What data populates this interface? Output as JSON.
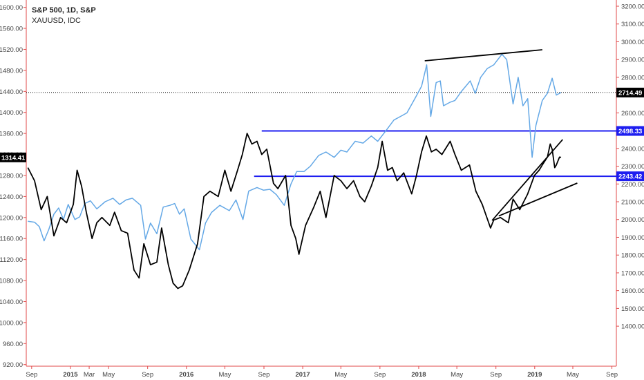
{
  "legend": {
    "line1": "S&P 500, 1D, S&P",
    "line2": "XAUUSD, IDC"
  },
  "chart_data": {
    "type": "line",
    "x_axis": {
      "tick_labels": [
        "Sep",
        "2015",
        "Mar",
        "May",
        "Sep",
        "2016",
        "May",
        "Sep",
        "2017",
        "May",
        "Sep",
        "2018",
        "May",
        "Sep",
        "2019",
        "May",
        "Sep"
      ],
      "tick_dates": [
        "2014-09-01",
        "2015-01-01",
        "2015-03-01",
        "2015-05-01",
        "2015-09-01",
        "2016-01-01",
        "2016-05-01",
        "2016-09-01",
        "2017-01-01",
        "2017-05-01",
        "2017-09-01",
        "2018-01-01",
        "2018-05-01",
        "2018-09-01",
        "2019-01-01",
        "2019-05-01",
        "2019-09-01"
      ],
      "range": [
        "2014-08-15",
        "2019-09-15"
      ]
    },
    "left_axis": {
      "ticks": [
        920,
        960,
        1000,
        1040,
        1080,
        1120,
        1160,
        1200,
        1240,
        1280,
        1320,
        1360,
        1400,
        1440,
        1480,
        1520,
        1560,
        1600
      ],
      "tick_labels": [
        "920.00",
        "960.00",
        "1000.00",
        "1040.00",
        "1080.00",
        "1120.00",
        "1160.00",
        "1200.00",
        "1240.00",
        "1280.00",
        "1320.00",
        "1360.00",
        "1400.00",
        "1440.00",
        "1480.00",
        "1520.00",
        "1560.00",
        "1600.00"
      ],
      "range": [
        917,
        1614
      ],
      "badge": {
        "value": 1314.41,
        "label": "1314.41"
      }
    },
    "right_axis": {
      "ticks": [
        1400,
        1500,
        1600,
        1700,
        1800,
        1900,
        2000,
        2100,
        2200,
        2300,
        2400,
        2500,
        2600,
        2700,
        2800,
        2900,
        3000,
        3100,
        3200
      ],
      "tick_labels": [
        "1400.00",
        "1500.00",
        "1600.00",
        "1700.00",
        "1800.00",
        "1900.00",
        "2000.00",
        "2100.00",
        "2200.00",
        "2300.00",
        "2400.00",
        "2500.00",
        "2600.00",
        "2700.00",
        "2800.00",
        "2900.00",
        "3000.00",
        "3100.00",
        "3200.00"
      ],
      "range": [
        1175,
        3235
      ],
      "badges": [
        {
          "value": 2714.49,
          "label": "2714.49",
          "color": "#000000"
        },
        {
          "value": 2498.33,
          "label": "2498.33",
          "color": "#1e1ef0"
        },
        {
          "value": 2243.42,
          "label": "2243.42",
          "color": "#1e1ef0"
        }
      ]
    },
    "series": [
      {
        "axis": "left",
        "color": "#000000",
        "points": [
          [
            "2014-08-20",
            1295
          ],
          [
            "2014-09-10",
            1270
          ],
          [
            "2014-10-01",
            1215
          ],
          [
            "2014-10-20",
            1240
          ],
          [
            "2014-11-10",
            1165
          ],
          [
            "2014-12-01",
            1200
          ],
          [
            "2014-12-20",
            1190
          ],
          [
            "2015-01-10",
            1225
          ],
          [
            "2015-01-22",
            1290
          ],
          [
            "2015-02-05",
            1260
          ],
          [
            "2015-02-20",
            1210
          ],
          [
            "2015-03-10",
            1160
          ],
          [
            "2015-03-25",
            1190
          ],
          [
            "2015-04-10",
            1200
          ],
          [
            "2015-05-05",
            1185
          ],
          [
            "2015-05-20",
            1210
          ],
          [
            "2015-06-10",
            1175
          ],
          [
            "2015-06-30",
            1170
          ],
          [
            "2015-07-20",
            1100
          ],
          [
            "2015-08-05",
            1085
          ],
          [
            "2015-08-20",
            1150
          ],
          [
            "2015-09-10",
            1110
          ],
          [
            "2015-09-30",
            1115
          ],
          [
            "2015-10-15",
            1180
          ],
          [
            "2015-11-05",
            1110
          ],
          [
            "2015-11-20",
            1075
          ],
          [
            "2015-12-05",
            1065
          ],
          [
            "2015-12-20",
            1070
          ],
          [
            "2016-01-10",
            1100
          ],
          [
            "2016-02-05",
            1150
          ],
          [
            "2016-02-25",
            1240
          ],
          [
            "2016-03-15",
            1250
          ],
          [
            "2016-04-10",
            1240
          ],
          [
            "2016-05-01",
            1290
          ],
          [
            "2016-05-20",
            1250
          ],
          [
            "2016-06-10",
            1290
          ],
          [
            "2016-06-25",
            1320
          ],
          [
            "2016-07-10",
            1360
          ],
          [
            "2016-07-25",
            1340
          ],
          [
            "2016-08-10",
            1345
          ],
          [
            "2016-08-25",
            1320
          ],
          [
            "2016-09-10",
            1330
          ],
          [
            "2016-10-01",
            1265
          ],
          [
            "2016-10-15",
            1255
          ],
          [
            "2016-11-08",
            1280
          ],
          [
            "2016-11-25",
            1185
          ],
          [
            "2016-12-10",
            1160
          ],
          [
            "2016-12-20",
            1130
          ],
          [
            "2017-01-10",
            1185
          ],
          [
            "2017-02-05",
            1220
          ],
          [
            "2017-02-25",
            1250
          ],
          [
            "2017-03-15",
            1200
          ],
          [
            "2017-04-10",
            1280
          ],
          [
            "2017-05-01",
            1270
          ],
          [
            "2017-05-20",
            1255
          ],
          [
            "2017-06-10",
            1270
          ],
          [
            "2017-06-30",
            1240
          ],
          [
            "2017-07-15",
            1230
          ],
          [
            "2017-08-05",
            1260
          ],
          [
            "2017-08-25",
            1295
          ],
          [
            "2017-09-08",
            1345
          ],
          [
            "2017-09-25",
            1290
          ],
          [
            "2017-10-10",
            1295
          ],
          [
            "2017-10-25",
            1270
          ],
          [
            "2017-11-15",
            1285
          ],
          [
            "2017-12-10",
            1245
          ],
          [
            "2017-12-25",
            1280
          ],
          [
            "2018-01-10",
            1325
          ],
          [
            "2018-01-25",
            1355
          ],
          [
            "2018-02-10",
            1325
          ],
          [
            "2018-02-25",
            1330
          ],
          [
            "2018-03-15",
            1320
          ],
          [
            "2018-04-10",
            1345
          ],
          [
            "2018-04-25",
            1320
          ],
          [
            "2018-05-15",
            1290
          ],
          [
            "2018-06-10",
            1300
          ],
          [
            "2018-06-30",
            1250
          ],
          [
            "2018-07-20",
            1225
          ],
          [
            "2018-08-15",
            1180
          ],
          [
            "2018-08-25",
            1195
          ],
          [
            "2018-09-15",
            1200
          ],
          [
            "2018-10-10",
            1190
          ],
          [
            "2018-10-25",
            1235
          ],
          [
            "2018-11-15",
            1215
          ],
          [
            "2018-12-10",
            1245
          ],
          [
            "2018-12-31",
            1280
          ],
          [
            "2019-01-15",
            1290
          ],
          [
            "2019-01-25",
            1300
          ],
          [
            "2019-02-10",
            1315
          ],
          [
            "2019-02-19",
            1340
          ],
          [
            "2019-02-25",
            1330
          ],
          [
            "2019-03-05",
            1295
          ],
          [
            "2019-03-10",
            1300
          ],
          [
            "2019-03-20",
            1315
          ],
          [
            "2019-03-25",
            1314.41
          ]
        ]
      },
      {
        "axis": "right",
        "color": "#64a8e6",
        "points": [
          [
            "2014-08-20",
            1990
          ],
          [
            "2014-09-10",
            1985
          ],
          [
            "2014-09-25",
            1960
          ],
          [
            "2014-10-10",
            1880
          ],
          [
            "2014-10-25",
            1945
          ],
          [
            "2014-11-10",
            2030
          ],
          [
            "2014-11-25",
            2065
          ],
          [
            "2014-12-10",
            2000
          ],
          [
            "2014-12-25",
            2085
          ],
          [
            "2015-01-15",
            2000
          ],
          [
            "2015-01-30",
            2015
          ],
          [
            "2015-02-15",
            2090
          ],
          [
            "2015-03-05",
            2105
          ],
          [
            "2015-03-25",
            2060
          ],
          [
            "2015-04-20",
            2100
          ],
          [
            "2015-05-15",
            2120
          ],
          [
            "2015-06-05",
            2085
          ],
          [
            "2015-06-25",
            2110
          ],
          [
            "2015-07-15",
            2120
          ],
          [
            "2015-08-10",
            2080
          ],
          [
            "2015-08-25",
            1890
          ],
          [
            "2015-09-10",
            1980
          ],
          [
            "2015-09-30",
            1920
          ],
          [
            "2015-10-20",
            2070
          ],
          [
            "2015-11-10",
            2080
          ],
          [
            "2015-11-25",
            2090
          ],
          [
            "2015-12-10",
            2030
          ],
          [
            "2015-12-25",
            2060
          ],
          [
            "2016-01-15",
            1890
          ],
          [
            "2016-02-11",
            1830
          ],
          [
            "2016-03-01",
            1980
          ],
          [
            "2016-03-20",
            2040
          ],
          [
            "2016-04-15",
            2080
          ],
          [
            "2016-05-15",
            2050
          ],
          [
            "2016-06-05",
            2110
          ],
          [
            "2016-06-27",
            2000
          ],
          [
            "2016-07-15",
            2160
          ],
          [
            "2016-08-10",
            2180
          ],
          [
            "2016-08-31",
            2165
          ],
          [
            "2016-09-20",
            2170
          ],
          [
            "2016-10-10",
            2140
          ],
          [
            "2016-11-04",
            2080
          ],
          [
            "2016-11-25",
            2200
          ],
          [
            "2016-12-13",
            2270
          ],
          [
            "2017-01-05",
            2270
          ],
          [
            "2017-01-25",
            2300
          ],
          [
            "2017-02-20",
            2360
          ],
          [
            "2017-03-15",
            2380
          ],
          [
            "2017-04-10",
            2350
          ],
          [
            "2017-05-01",
            2390
          ],
          [
            "2017-05-20",
            2380
          ],
          [
            "2017-06-15",
            2440
          ],
          [
            "2017-07-10",
            2430
          ],
          [
            "2017-08-05",
            2470
          ],
          [
            "2017-08-25",
            2440
          ],
          [
            "2017-09-20",
            2500
          ],
          [
            "2017-10-15",
            2560
          ],
          [
            "2017-11-05",
            2580
          ],
          [
            "2017-11-25",
            2600
          ],
          [
            "2017-12-20",
            2680
          ],
          [
            "2018-01-10",
            2750
          ],
          [
            "2018-01-26",
            2870
          ],
          [
            "2018-02-08",
            2580
          ],
          [
            "2018-02-25",
            2770
          ],
          [
            "2018-03-10",
            2780
          ],
          [
            "2018-03-20",
            2640
          ],
          [
            "2018-04-10",
            2660
          ],
          [
            "2018-04-25",
            2670
          ],
          [
            "2018-05-15",
            2720
          ],
          [
            "2018-06-12",
            2780
          ],
          [
            "2018-06-28",
            2710
          ],
          [
            "2018-07-15",
            2800
          ],
          [
            "2018-08-05",
            2850
          ],
          [
            "2018-08-25",
            2870
          ],
          [
            "2018-09-20",
            2930
          ],
          [
            "2018-10-05",
            2900
          ],
          [
            "2018-10-25",
            2650
          ],
          [
            "2018-11-10",
            2800
          ],
          [
            "2018-11-25",
            2640
          ],
          [
            "2018-12-10",
            2680
          ],
          [
            "2018-12-24",
            2350
          ],
          [
            "2019-01-05",
            2530
          ],
          [
            "2019-01-25",
            2670
          ],
          [
            "2019-02-10",
            2710
          ],
          [
            "2019-02-25",
            2795
          ],
          [
            "2019-03-10",
            2700
          ],
          [
            "2019-03-25",
            2714.49
          ]
        ]
      }
    ],
    "trend_lines": [
      {
        "axis": "right",
        "color": "#000000",
        "start": [
          "2018-01-20",
          2893
        ],
        "end": [
          "2019-01-25",
          2955
        ]
      },
      {
        "axis": "right",
        "color": "#000000",
        "start": [
          "2018-08-20",
          1995
        ],
        "end": [
          "2019-03-30",
          2450
        ]
      },
      {
        "axis": "right",
        "color": "#000000",
        "start": [
          "2018-09-10",
          2020
        ],
        "end": [
          "2019-05-15",
          2205
        ]
      }
    ],
    "horizontal_lines": [
      {
        "axis": "right",
        "color": "#1e1ef0",
        "value": 2498.33,
        "from": "2016-08-25"
      },
      {
        "axis": "right",
        "color": "#1e1ef0",
        "value": 2243.42,
        "from": "2016-08-01"
      },
      {
        "axis": "right",
        "color": "#000000",
        "value": 2714.49,
        "dashed": true
      }
    ],
    "grid": false
  }
}
